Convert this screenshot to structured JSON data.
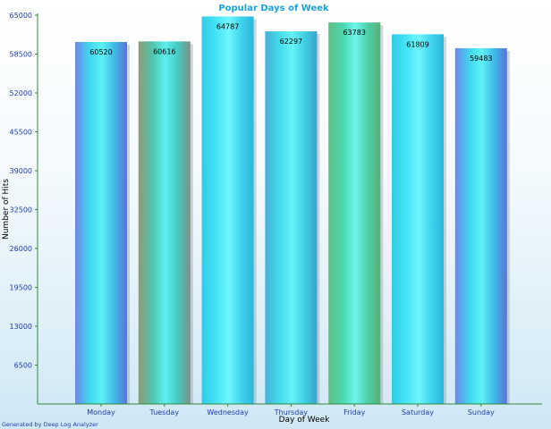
{
  "chart_data": {
    "type": "bar",
    "title": "Popular Days of Week",
    "xlabel": "Day of Week",
    "ylabel": "Number of Hits",
    "categories": [
      "Monday",
      "Tuesday",
      "Wednesday",
      "Thursday",
      "Friday",
      "Saturday",
      "Sunday"
    ],
    "values": [
      60520,
      60616,
      64787,
      62297,
      63783,
      61809,
      59483
    ],
    "ylim": [
      0,
      65000
    ],
    "yticks": [
      6500,
      13000,
      19500,
      26000,
      32500,
      39000,
      45500,
      52000,
      58500,
      65000
    ],
    "grid": false,
    "legend": "none"
  },
  "footer": "Generated by Deep Log Analyzer",
  "colors": {
    "title": "#19a3d6",
    "tick_text": "#1f3aa8",
    "axis_line": "#2e8b3a",
    "footer_text": "#1f3aa8",
    "bar_fills": [
      "blue-cyan",
      "olive-cyan",
      "cyan",
      "teal-cyan",
      "green-cyan",
      "cyan",
      "blue-cyan"
    ]
  }
}
